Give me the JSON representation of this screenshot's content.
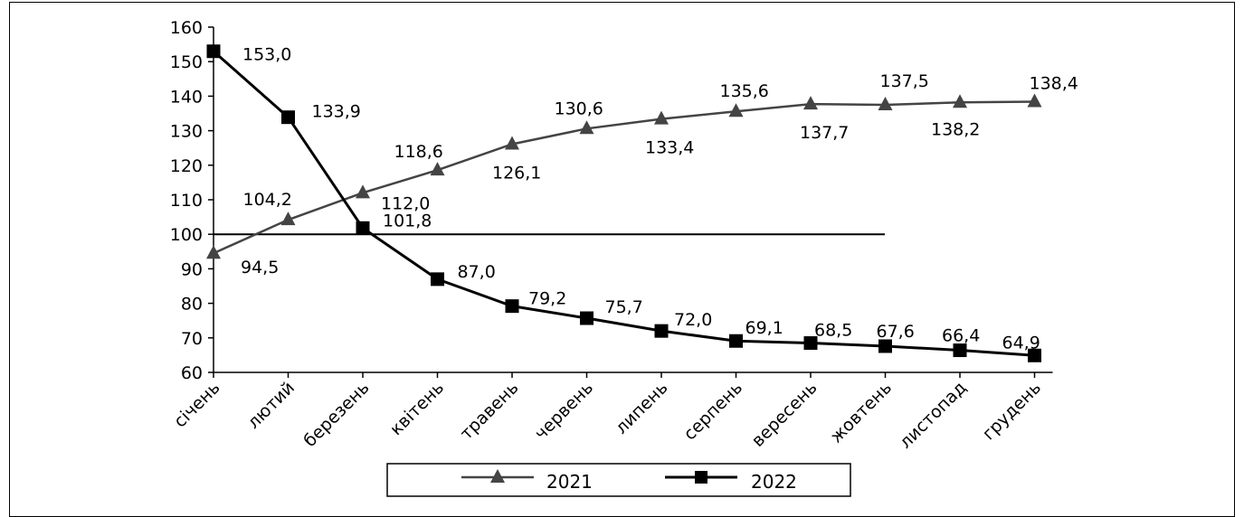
{
  "chart_data": {
    "type": "line",
    "categories": [
      "січень",
      "лютий",
      "березень",
      "квітень",
      "травень",
      "червень",
      "липень",
      "серпень",
      "вересень",
      "жовтень",
      "листопад",
      "грудень"
    ],
    "ylim": [
      60,
      160
    ],
    "yticks": [
      60,
      70,
      80,
      90,
      100,
      110,
      120,
      130,
      140,
      150,
      160
    ],
    "reference_line": 100,
    "grid": false,
    "legend_position": "bottom",
    "series": [
      {
        "name": "2021",
        "marker": "triangle",
        "color": "#444444",
        "values": [
          94.5,
          104.2,
          112.0,
          118.6,
          126.1,
          130.6,
          133.4,
          135.6,
          137.7,
          137.5,
          138.2,
          138.4
        ],
        "labels": [
          "94,5",
          "104,2",
          "112,0",
          "118,6",
          "126,1",
          "130,6",
          "133,4",
          "135,6",
          "137,7",
          "137,5",
          "138,2",
          "138,4"
        ]
      },
      {
        "name": "2022",
        "marker": "square",
        "color": "#000000",
        "values": [
          153.0,
          133.9,
          101.8,
          87.0,
          79.2,
          75.7,
          72.0,
          69.1,
          68.5,
          67.6,
          66.4,
          64.9
        ],
        "labels": [
          "153,0",
          "133,9",
          "101,8",
          "87,0",
          "79,2",
          "75,7",
          "72,0",
          "69,1",
          "68,5",
          "67,6",
          "66,4",
          "64,9"
        ]
      }
    ]
  }
}
